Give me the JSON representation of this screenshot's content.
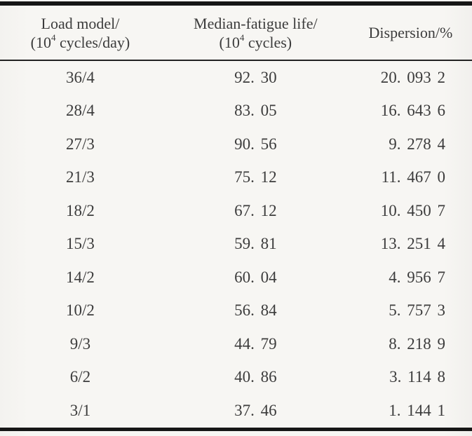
{
  "table": {
    "header": {
      "load_model": {
        "title": "Load model/",
        "unit_pre": "(10",
        "unit_sup": "4",
        "unit_post": " cycles/day)"
      },
      "median_life": {
        "title": "Median-fatigue life/",
        "unit_pre": "(10",
        "unit_sup": "4",
        "unit_post": " cycles)"
      },
      "dispersion": {
        "title": "Dispersion/%"
      }
    },
    "rows": [
      {
        "load_model": "36/4",
        "median_life": "92. 30",
        "dispersion": "20. 093 2"
      },
      {
        "load_model": "28/4",
        "median_life": "83. 05",
        "dispersion": "16. 643 6"
      },
      {
        "load_model": "27/3",
        "median_life": "90. 56",
        "dispersion": "9. 278 4"
      },
      {
        "load_model": "21/3",
        "median_life": "75. 12",
        "dispersion": "11. 467 0"
      },
      {
        "load_model": "18/2",
        "median_life": "67. 12",
        "dispersion": "10. 450 7"
      },
      {
        "load_model": "15/3",
        "median_life": "59. 81",
        "dispersion": "13. 251 4"
      },
      {
        "load_model": "14/2",
        "median_life": "60. 04",
        "dispersion": "4. 956 7"
      },
      {
        "load_model": "10/2",
        "median_life": "56. 84",
        "dispersion": "5. 757 3"
      },
      {
        "load_model": "9/3",
        "median_life": "44. 79",
        "dispersion": "8. 218 9"
      },
      {
        "load_model": "6/2",
        "median_life": "40. 86",
        "dispersion": "3. 114 8"
      },
      {
        "load_model": "3/1",
        "median_life": "37. 46",
        "dispersion": "1. 144 1"
      }
    ],
    "colors": {
      "paper": "#f6f5f2",
      "text": "#3c3c3c",
      "rule": "#161616"
    }
  }
}
